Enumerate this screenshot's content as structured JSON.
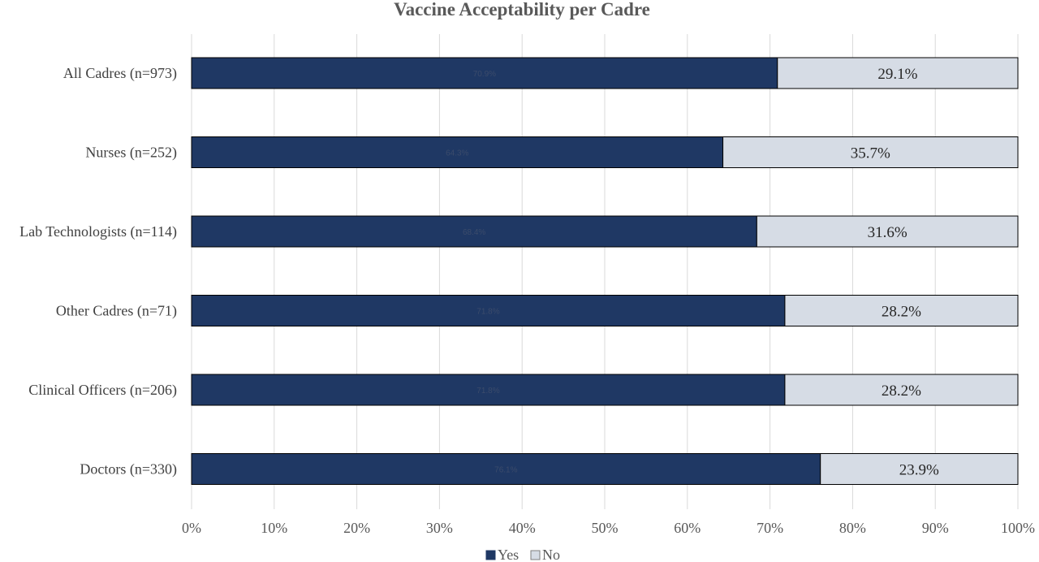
{
  "chart_data": {
    "type": "bar",
    "orientation": "horizontal",
    "stacked": true,
    "title": "Vaccine Acceptability per Cadre",
    "categories": [
      "All Cadres (n=973)",
      "Nurses (n=252)",
      "Lab Technologists (n=114)",
      "Other Cadres (n=71)",
      "Clinical Officers (n=206)",
      "Doctors (n=330)"
    ],
    "series": [
      {
        "name": "Yes",
        "color": "#1f3864",
        "label_color": "#3b4b6b",
        "values": [
          70.9,
          64.3,
          68.4,
          71.8,
          71.8,
          76.1
        ],
        "labels": [
          "70.9%",
          "64.3%",
          "68.4%",
          "71.8%",
          "71.8%",
          "76.1%"
        ]
      },
      {
        "name": "No",
        "color": "#d6dce5",
        "label_color": "#262626",
        "values": [
          29.1,
          35.7,
          31.6,
          28.2,
          28.2,
          23.9
        ],
        "labels": [
          "29.1%",
          "35.7%",
          "31.6%",
          "28.2%",
          "28.2%",
          "23.9%"
        ]
      }
    ],
    "xlim": [
      0,
      100
    ],
    "xticks": [
      "0%",
      "10%",
      "20%",
      "30%",
      "40%",
      "50%",
      "60%",
      "70%",
      "80%",
      "90%",
      "100%"
    ],
    "grid": true,
    "legend_position": "bottom"
  }
}
